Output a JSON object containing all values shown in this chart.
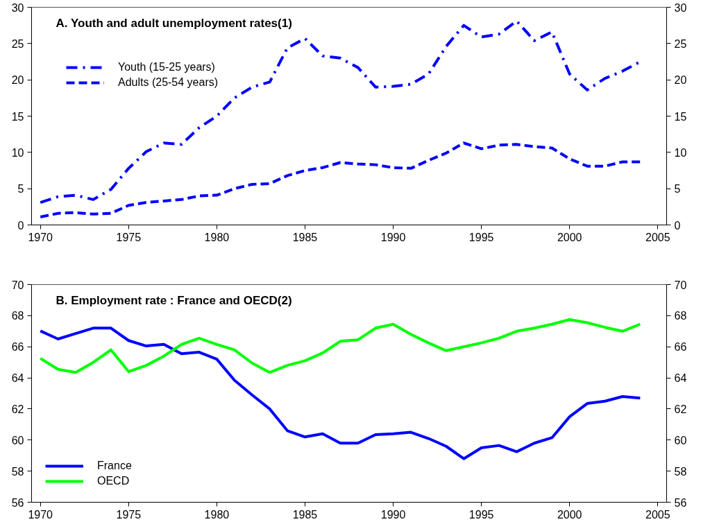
{
  "chart_data": [
    {
      "type": "line",
      "title": "A. Youth and adult unemployment rates(1)",
      "x": [
        1970,
        1971,
        1972,
        1973,
        1974,
        1975,
        1976,
        1977,
        1978,
        1979,
        1980,
        1981,
        1982,
        1983,
        1984,
        1985,
        1986,
        1987,
        1988,
        1989,
        1990,
        1991,
        1992,
        1993,
        1994,
        1995,
        1996,
        1997,
        1998,
        1999,
        2000,
        2001,
        2002,
        2003,
        2004
      ],
      "series": [
        {
          "name": "Youth (15-25 years)",
          "color": "#0000ff",
          "line_style": "dashdot",
          "values": [
            3.1,
            3.9,
            4.1,
            3.5,
            4.9,
            7.8,
            10.1,
            11.3,
            11.1,
            13.4,
            15.0,
            17.5,
            19.0,
            19.7,
            24.4,
            25.7,
            23.3,
            23.0,
            21.7,
            19.0,
            19.1,
            19.4,
            20.8,
            24.6,
            27.5,
            25.9,
            26.3,
            28.1,
            25.4,
            26.6,
            20.8,
            18.6,
            20.2,
            21.2,
            22.5
          ]
        },
        {
          "name": "Adults (25-54 years)",
          "color": "#0000ff",
          "line_style": "dashed",
          "values": [
            1.1,
            1.6,
            1.7,
            1.5,
            1.6,
            2.7,
            3.1,
            3.3,
            3.5,
            4.0,
            4.1,
            5.0,
            5.6,
            5.7,
            6.8,
            7.5,
            7.9,
            8.6,
            8.4,
            8.3,
            7.9,
            7.8,
            8.9,
            9.9,
            11.3,
            10.5,
            11.0,
            11.1,
            10.8,
            10.6,
            9.1,
            8.1,
            8.1,
            8.7,
            8.7
          ]
        }
      ],
      "xlim": [
        1969.5,
        2005.5
      ],
      "xticks": [
        1970,
        1975,
        1980,
        1985,
        1990,
        1995,
        2000,
        2005
      ],
      "ylim": [
        0,
        30
      ],
      "yticks": [
        0,
        5,
        10,
        15,
        20,
        25,
        30
      ],
      "y2lim": [
        0,
        30
      ],
      "y2ticks": [
        0,
        5,
        10,
        15,
        20,
        25,
        30
      ],
      "grid": false,
      "legend": "top left"
    },
    {
      "type": "line",
      "title": "B. Employment rate : France and OECD(2)",
      "x": [
        1970,
        1971,
        1972,
        1973,
        1974,
        1975,
        1976,
        1977,
        1978,
        1979,
        1980,
        1981,
        1982,
        1983,
        1984,
        1985,
        1986,
        1987,
        1988,
        1989,
        1990,
        1991,
        1992,
        1993,
        1994,
        1995,
        1996,
        1997,
        1998,
        1999,
        2000,
        2001,
        2002,
        2003,
        2004
      ],
      "series": [
        {
          "name": "France",
          "color": "#0000ff",
          "line_style": "solid",
          "values": [
            67.02,
            66.5,
            66.85,
            67.2,
            67.2,
            66.4,
            66.05,
            66.15,
            65.55,
            65.65,
            65.2,
            63.85,
            62.9,
            62.0,
            60.6,
            60.2,
            60.4,
            59.8,
            59.8,
            60.35,
            60.4,
            60.5,
            60.1,
            59.6,
            58.8,
            59.5,
            59.65,
            59.25,
            59.8,
            60.15,
            61.5,
            62.35,
            62.5,
            62.8,
            62.7
          ]
        },
        {
          "name": "OECD",
          "color": "#00ff00",
          "line_style": "solid",
          "values": [
            65.25,
            64.55,
            64.35,
            65.0,
            65.8,
            64.4,
            64.8,
            65.4,
            66.15,
            66.55,
            66.15,
            65.8,
            64.95,
            64.35,
            64.8,
            65.1,
            65.6,
            66.35,
            66.45,
            67.2,
            67.45,
            66.8,
            66.25,
            65.75,
            66.0,
            66.25,
            66.55,
            67.0,
            67.2,
            67.45,
            67.75,
            67.55,
            67.25,
            67.0,
            67.45
          ]
        }
      ],
      "xlim": [
        1969.5,
        2005.5
      ],
      "xticks": [
        1970,
        1975,
        1980,
        1985,
        1990,
        1995,
        2000,
        2005
      ],
      "ylim": [
        56,
        70
      ],
      "yticks": [
        56,
        58,
        60,
        62,
        64,
        66,
        68,
        70
      ],
      "y2lim": [
        56,
        70
      ],
      "y2ticks": [
        56,
        58,
        60,
        62,
        64,
        66,
        68,
        70
      ],
      "grid": false,
      "legend": "bottom left"
    }
  ]
}
